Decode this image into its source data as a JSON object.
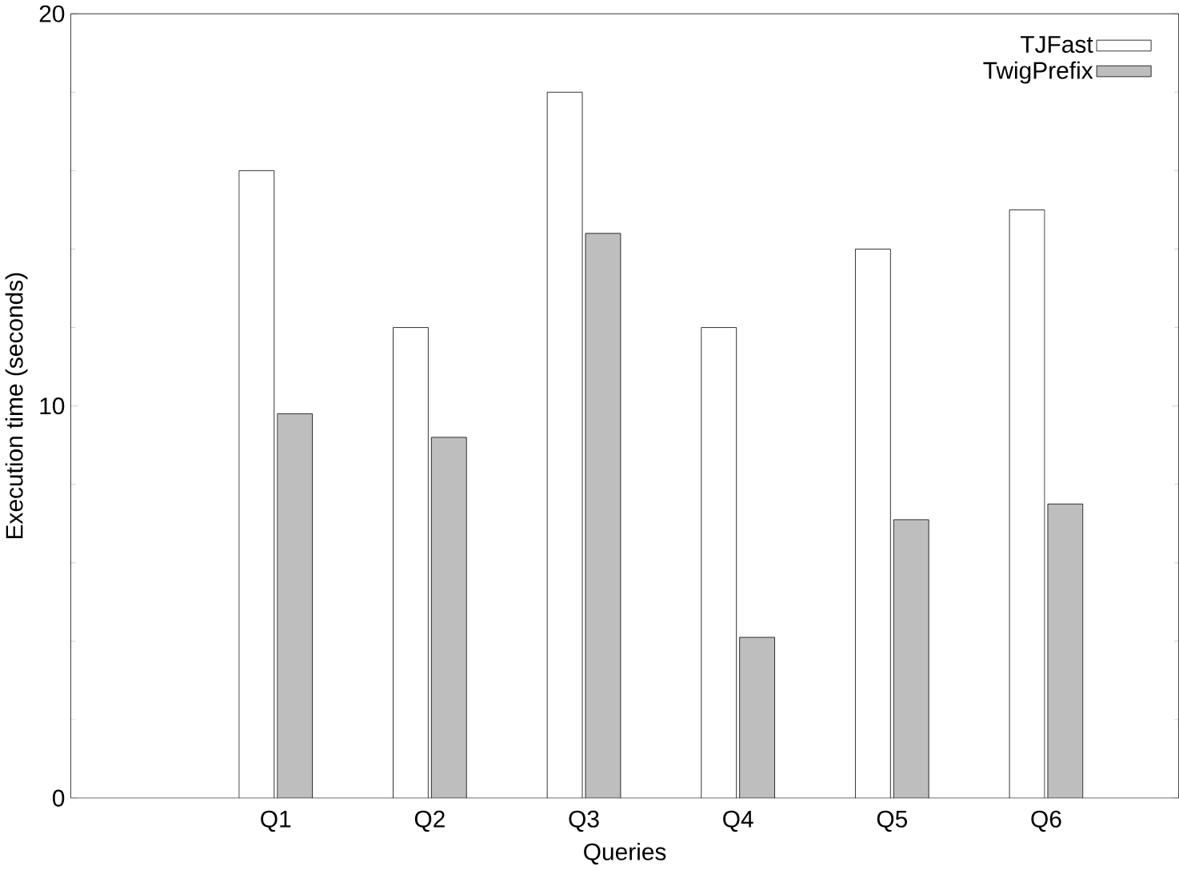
{
  "chart_data": {
    "type": "bar",
    "xlabel": "Queries",
    "ylabel": "Execution time (seconds)",
    "categories": [
      "Q1",
      "Q2",
      "Q3",
      "Q4",
      "Q5",
      "Q6"
    ],
    "series": [
      {
        "name": "TJFast",
        "color": "#ffffff",
        "values": [
          16,
          12,
          18,
          12,
          14,
          15
        ]
      },
      {
        "name": "TwigPrefix",
        "color": "#bebebe",
        "values": [
          9.8,
          9.2,
          14.4,
          4.1,
          7.1,
          7.5
        ]
      }
    ],
    "ylim": [
      0,
      20
    ],
    "yticks": [
      0,
      10,
      20
    ],
    "legend": "top right",
    "grid": false
  }
}
